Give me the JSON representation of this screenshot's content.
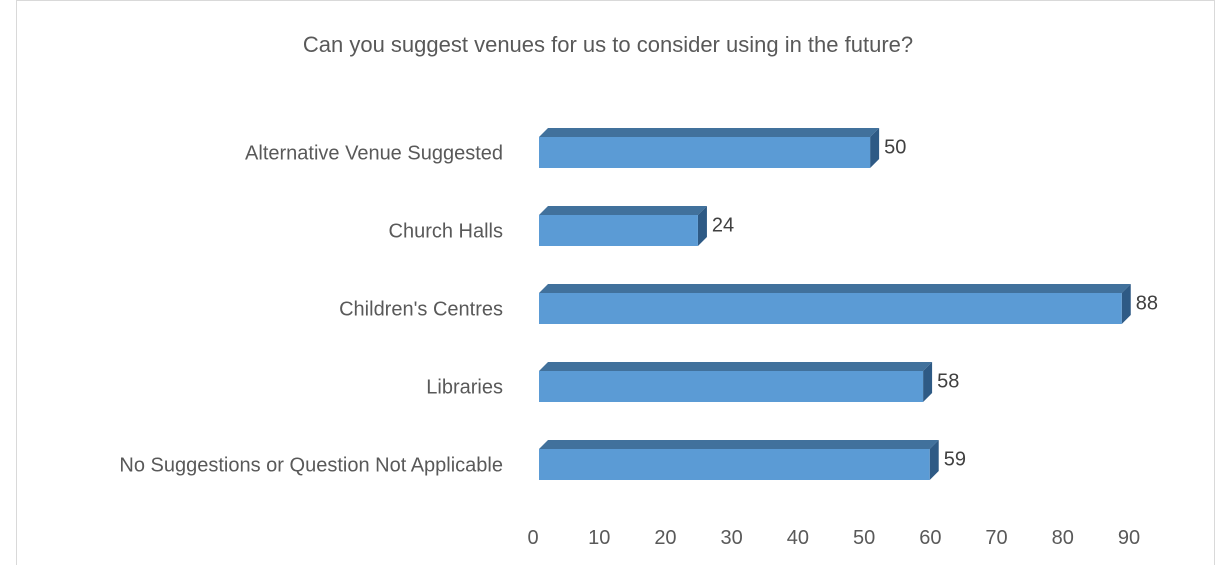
{
  "chart_data": {
    "type": "bar",
    "orientation": "horizontal",
    "title": "Can you suggest venues for us to consider using in the future?",
    "categories": [
      "Alternative Venue Suggested",
      "Church Halls",
      "Children's Centres",
      "Libraries",
      "No Suggestions or Question Not Applicable"
    ],
    "values": [
      50,
      24,
      88,
      58,
      59
    ],
    "xlim": [
      0,
      90
    ],
    "xticks": [
      0,
      10,
      20,
      30,
      40,
      50,
      60,
      70,
      80,
      90
    ],
    "grid": false,
    "legend": "none",
    "data_labels": true,
    "style": "3d",
    "colors": {
      "bar_front": "#5b9bd5",
      "bar_top": "#41719c",
      "bar_side": "#2e5a85"
    }
  }
}
